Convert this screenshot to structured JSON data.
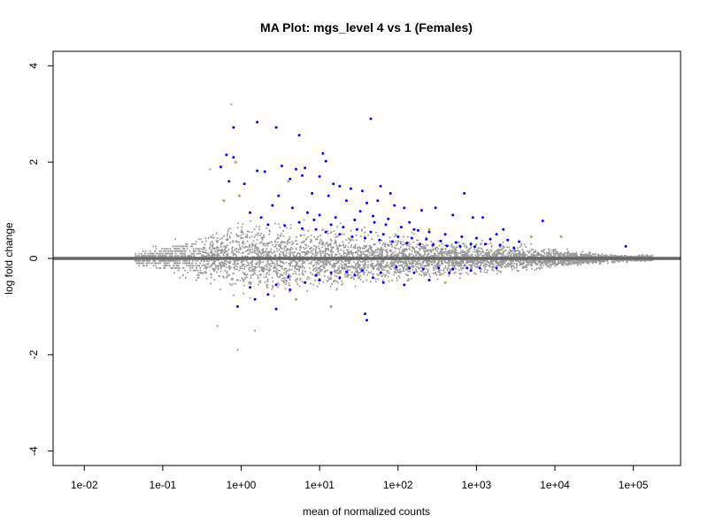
{
  "chart_data": {
    "type": "scatter",
    "title": "MA Plot: mgs_level 4 vs 1 (Females)",
    "xlabel": "mean of normalized counts",
    "ylabel": "log fold change",
    "x_scale": "log10",
    "xlim": [
      0.004,
      400000
    ],
    "ylim": [
      -4.3,
      4.3
    ],
    "x_ticks": [
      {
        "value": 0.01,
        "label": "1e-02"
      },
      {
        "value": 0.1,
        "label": "1e-01"
      },
      {
        "value": 1,
        "label": "1e+00"
      },
      {
        "value": 10,
        "label": "1e+01"
      },
      {
        "value": 100,
        "label": "1e+02"
      },
      {
        "value": 1000,
        "label": "1e+03"
      },
      {
        "value": 10000,
        "label": "1e+04"
      },
      {
        "value": 100000,
        "label": "1e+05"
      }
    ],
    "y_ticks": [
      {
        "value": 4,
        "label": "4"
      },
      {
        "value": 2,
        "label": "2"
      },
      {
        "value": 0,
        "label": "0"
      },
      {
        "value": -2,
        "label": "-2"
      },
      {
        "value": -4,
        "label": "-4"
      }
    ],
    "reference_line": {
      "y": 0,
      "color": "#666666"
    },
    "grid": false,
    "colors": {
      "not_significant": "#999999",
      "significant": "#0000ff",
      "outlier": "#b8a060"
    },
    "series": [
      {
        "color": "#0000ff",
        "points": [
          [
            0.8,
            2.72
          ],
          [
            1.6,
            2.83
          ],
          [
            2.8,
            2.72
          ],
          [
            45,
            2.9
          ],
          [
            5.5,
            2.56
          ],
          [
            0.65,
            2.15
          ],
          [
            0.8,
            2.1
          ],
          [
            11,
            2.18
          ],
          [
            12,
            2.02
          ],
          [
            3.3,
            1.92
          ],
          [
            5.0,
            1.85
          ],
          [
            6.5,
            1.88
          ],
          [
            2.0,
            1.8
          ],
          [
            1.6,
            1.82
          ],
          [
            0.55,
            1.9
          ],
          [
            4.2,
            1.65
          ],
          [
            6.0,
            1.72
          ],
          [
            10,
            1.7
          ],
          [
            15,
            1.55
          ],
          [
            18,
            1.5
          ],
          [
            0.7,
            1.6
          ],
          [
            1.1,
            1.55
          ],
          [
            25,
            1.45
          ],
          [
            35,
            1.4
          ],
          [
            60,
            1.5
          ],
          [
            80,
            1.35
          ],
          [
            700,
            1.35
          ],
          [
            3.0,
            1.3
          ],
          [
            8,
            1.35
          ],
          [
            13,
            1.3
          ],
          [
            22,
            1.2
          ],
          [
            40,
            1.15
          ],
          [
            55,
            1.2
          ],
          [
            90,
            1.1
          ],
          [
            120,
            1.05
          ],
          [
            200,
            1.0
          ],
          [
            300,
            1.05
          ],
          [
            500,
            0.9
          ],
          [
            900,
            0.85
          ],
          [
            1200,
            0.85
          ],
          [
            7000,
            0.78
          ],
          [
            2.5,
            1.1
          ],
          [
            4.5,
            1.05
          ],
          [
            7,
            0.95
          ],
          [
            10,
            0.9
          ],
          [
            16,
            0.85
          ],
          [
            28,
            0.8
          ],
          [
            50,
            0.75
          ],
          [
            70,
            0.7
          ],
          [
            110,
            0.65
          ],
          [
            160,
            0.6
          ],
          [
            250,
            0.55
          ],
          [
            400,
            0.5
          ],
          [
            650,
            0.45
          ],
          [
            1000,
            0.42
          ],
          [
            1500,
            0.4
          ],
          [
            2500,
            0.38
          ],
          [
            3500,
            0.35
          ],
          [
            14,
            0.7
          ],
          [
            20,
            0.65
          ],
          [
            30,
            0.6
          ],
          [
            45,
            0.55
          ],
          [
            65,
            0.5
          ],
          [
            100,
            0.45
          ],
          [
            150,
            0.42
          ],
          [
            230,
            0.4
          ],
          [
            350,
            0.36
          ],
          [
            550,
            0.33
          ],
          [
            850,
            0.3
          ],
          [
            1300,
            0.3
          ],
          [
            2000,
            0.28
          ],
          [
            5.5,
            0.75
          ],
          [
            9,
            0.6
          ],
          [
            12,
            0.55
          ],
          [
            18,
            0.5
          ],
          [
            26,
            0.45
          ],
          [
            38,
            0.42
          ],
          [
            58,
            0.38
          ],
          [
            85,
            0.35
          ],
          [
            130,
            0.32
          ],
          [
            190,
            0.3
          ],
          [
            280,
            0.28
          ],
          [
            420,
            0.26
          ],
          [
            620,
            0.25
          ],
          [
            950,
            0.24
          ],
          [
            80000,
            0.25
          ],
          [
            1800,
            0.5
          ],
          [
            2200,
            0.6
          ],
          [
            3000,
            0.22
          ],
          [
            1.3,
            0.95
          ],
          [
            1.8,
            0.85
          ],
          [
            2.2,
            0.7
          ],
          [
            3.6,
            0.68
          ],
          [
            6,
            0.62
          ],
          [
            8.5,
            0.8
          ],
          [
            33,
            0.98
          ],
          [
            48,
            0.88
          ],
          [
            75,
            0.82
          ],
          [
            140,
            0.75
          ],
          [
            180,
            0.58
          ],
          [
            95,
            -0.18
          ],
          [
            140,
            -0.2
          ],
          [
            210,
            -0.22
          ],
          [
            330,
            -0.2
          ],
          [
            500,
            -0.22
          ],
          [
            760,
            -0.2
          ],
          [
            1100,
            -0.2
          ],
          [
            60,
            -0.3
          ],
          [
            35,
            -0.25
          ],
          [
            22,
            -0.28
          ],
          [
            14,
            -0.3
          ],
          [
            9,
            -0.35
          ],
          [
            4,
            -0.38
          ],
          [
            6.5,
            -0.5
          ],
          [
            2.8,
            -0.55
          ],
          [
            10,
            -0.45
          ],
          [
            18,
            -0.4
          ],
          [
            28,
            -0.35
          ],
          [
            48,
            -0.4
          ],
          [
            160,
            -0.3
          ],
          [
            1.3,
            -0.6
          ],
          [
            1.5,
            -0.85
          ],
          [
            2.2,
            -0.75
          ],
          [
            2.8,
            -1.05
          ],
          [
            4.2,
            -0.65
          ],
          [
            0.9,
            -1.0
          ],
          [
            40,
            -1.28
          ],
          [
            38,
            -1.15
          ],
          [
            65,
            -0.5
          ],
          [
            250,
            -0.45
          ],
          [
            450,
            -0.3
          ],
          [
            850,
            -0.25
          ],
          [
            1800,
            -0.2
          ],
          [
            120,
            -0.55
          ]
        ]
      },
      {
        "color": "#b8a060",
        "points": [
          [
            0.85,
            2.0
          ],
          [
            4.0,
            1.6
          ],
          [
            250,
            0.6
          ],
          [
            5000,
            0.45
          ],
          [
            12000,
            0.45
          ],
          [
            400,
            -0.5
          ],
          [
            14,
            -1.0
          ],
          [
            5,
            -0.85
          ],
          [
            0.95,
            1.3
          ],
          [
            0.6,
            1.2
          ]
        ]
      }
    ]
  }
}
